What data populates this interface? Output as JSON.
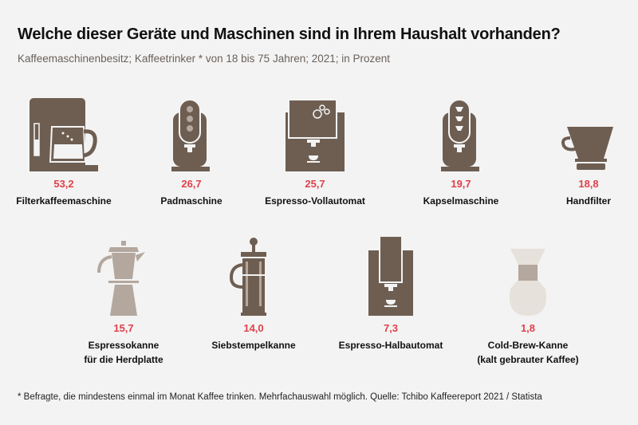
{
  "header": {
    "title": "Welche dieser Geräte und Maschinen sind in Ihrem Haushalt vorhanden?",
    "subtitle": "Kaffeemaschinenbesitz; Kaffeetrinker * von 18 bis 75 Jahren; 2021; in Prozent"
  },
  "colors": {
    "icon": "#6e5e52",
    "icon_light": "#b3a79e",
    "icon_pale": "#e7e1db",
    "value": "#e0414a",
    "background": "#f3f3f3"
  },
  "chart_data": {
    "type": "table",
    "title": "Welche dieser Geräte und Maschinen sind in Ihrem Haushalt vorhanden?",
    "unit": "Prozent",
    "items": [
      {
        "label": "Filterkaffeemaschine",
        "value": "53,2",
        "icon": "filter-coffee-machine-icon"
      },
      {
        "label": "Padmaschine",
        "value": "26,7",
        "icon": "pad-machine-icon"
      },
      {
        "label": "Espresso-Vollautomat",
        "value": "25,7",
        "icon": "espresso-full-automatic-icon"
      },
      {
        "label": "Kapselmaschine",
        "value": "19,7",
        "icon": "capsule-machine-icon"
      },
      {
        "label": "Handfilter",
        "value": "18,8",
        "icon": "hand-filter-icon"
      },
      {
        "label": "Espressokanne",
        "label2": "für die Herdplatte",
        "value": "15,7",
        "icon": "moka-pot-icon"
      },
      {
        "label": "Siebstempelkanne",
        "value": "14,0",
        "icon": "french-press-icon"
      },
      {
        "label": "Espresso-Halbautomat",
        "value": "7,3",
        "icon": "espresso-semi-automatic-icon"
      },
      {
        "label": "Cold-Brew-Kanne",
        "label2": "(kalt gebrauter Kaffee)",
        "value": "1,8",
        "icon": "cold-brew-carafe-icon"
      }
    ]
  },
  "footer": {
    "note": "* Befragte, die mindestens einmal im Monat Kaffee trinken. Mehrfachauswahl möglich. Quelle: Tchibo Kaffeereport 2021 / Statista"
  }
}
